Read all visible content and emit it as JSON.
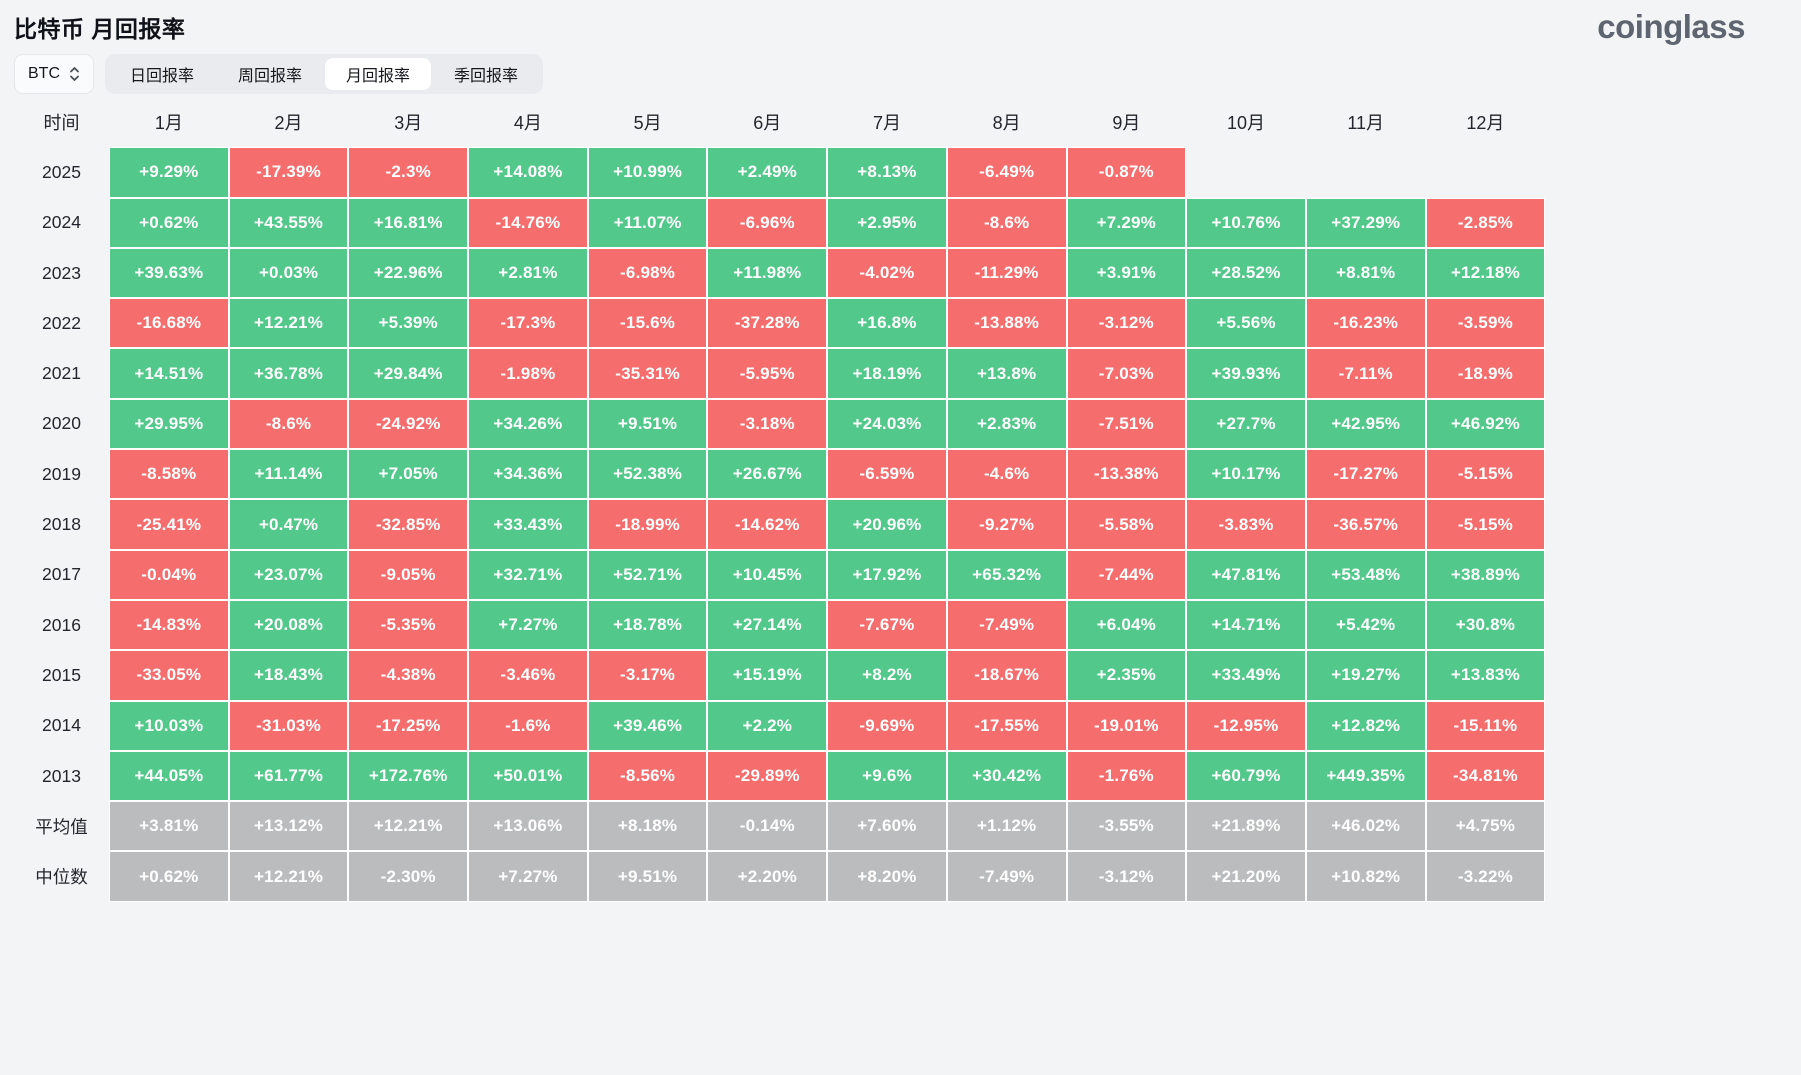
{
  "header": {
    "title": "比特币 月回报率",
    "logo": "coinglass"
  },
  "controls": {
    "coin_selector": {
      "value": "BTC",
      "icon": "updown-chevrons-icon"
    },
    "tabs": [
      {
        "label": "日回报率",
        "active": false
      },
      {
        "label": "周回报率",
        "active": false
      },
      {
        "label": "月回报率",
        "active": true
      },
      {
        "label": "季回报率",
        "active": false
      }
    ]
  },
  "colors": {
    "positive": "#52c98a",
    "negative": "#f66d6d",
    "summary": "#bbbcbe",
    "page_background": "#f3f4f6"
  },
  "chart_data": {
    "type": "heatmap",
    "title": "比特币 月回报率",
    "corner_label": "时间",
    "columns": [
      "1月",
      "2月",
      "3月",
      "4月",
      "5月",
      "6月",
      "7月",
      "8月",
      "9月",
      "10月",
      "11月",
      "12月"
    ],
    "rows": [
      {
        "label": "2025",
        "type": "year",
        "cells": [
          "+9.29%",
          "-17.39%",
          "-2.3%",
          "+14.08%",
          "+10.99%",
          "+2.49%",
          "+8.13%",
          "-6.49%",
          "-0.87%",
          null,
          null,
          null
        ]
      },
      {
        "label": "2024",
        "type": "year",
        "cells": [
          "+0.62%",
          "+43.55%",
          "+16.81%",
          "-14.76%",
          "+11.07%",
          "-6.96%",
          "+2.95%",
          "-8.6%",
          "+7.29%",
          "+10.76%",
          "+37.29%",
          "-2.85%"
        ]
      },
      {
        "label": "2023",
        "type": "year",
        "cells": [
          "+39.63%",
          "+0.03%",
          "+22.96%",
          "+2.81%",
          "-6.98%",
          "+11.98%",
          "-4.02%",
          "-11.29%",
          "+3.91%",
          "+28.52%",
          "+8.81%",
          "+12.18%"
        ]
      },
      {
        "label": "2022",
        "type": "year",
        "cells": [
          "-16.68%",
          "+12.21%",
          "+5.39%",
          "-17.3%",
          "-15.6%",
          "-37.28%",
          "+16.8%",
          "-13.88%",
          "-3.12%",
          "+5.56%",
          "-16.23%",
          "-3.59%"
        ]
      },
      {
        "label": "2021",
        "type": "year",
        "cells": [
          "+14.51%",
          "+36.78%",
          "+29.84%",
          "-1.98%",
          "-35.31%",
          "-5.95%",
          "+18.19%",
          "+13.8%",
          "-7.03%",
          "+39.93%",
          "-7.11%",
          "-18.9%"
        ]
      },
      {
        "label": "2020",
        "type": "year",
        "cells": [
          "+29.95%",
          "-8.6%",
          "-24.92%",
          "+34.26%",
          "+9.51%",
          "-3.18%",
          "+24.03%",
          "+2.83%",
          "-7.51%",
          "+27.7%",
          "+42.95%",
          "+46.92%"
        ]
      },
      {
        "label": "2019",
        "type": "year",
        "cells": [
          "-8.58%",
          "+11.14%",
          "+7.05%",
          "+34.36%",
          "+52.38%",
          "+26.67%",
          "-6.59%",
          "-4.6%",
          "-13.38%",
          "+10.17%",
          "-17.27%",
          "-5.15%"
        ]
      },
      {
        "label": "2018",
        "type": "year",
        "cells": [
          "-25.41%",
          "+0.47%",
          "-32.85%",
          "+33.43%",
          "-18.99%",
          "-14.62%",
          "+20.96%",
          "-9.27%",
          "-5.58%",
          "-3.83%",
          "-36.57%",
          "-5.15%"
        ]
      },
      {
        "label": "2017",
        "type": "year",
        "cells": [
          "-0.04%",
          "+23.07%",
          "-9.05%",
          "+32.71%",
          "+52.71%",
          "+10.45%",
          "+17.92%",
          "+65.32%",
          "-7.44%",
          "+47.81%",
          "+53.48%",
          "+38.89%"
        ]
      },
      {
        "label": "2016",
        "type": "year",
        "cells": [
          "-14.83%",
          "+20.08%",
          "-5.35%",
          "+7.27%",
          "+18.78%",
          "+27.14%",
          "-7.67%",
          "-7.49%",
          "+6.04%",
          "+14.71%",
          "+5.42%",
          "+30.8%"
        ]
      },
      {
        "label": "2015",
        "type": "year",
        "cells": [
          "-33.05%",
          "+18.43%",
          "-4.38%",
          "-3.46%",
          "-3.17%",
          "+15.19%",
          "+8.2%",
          "-18.67%",
          "+2.35%",
          "+33.49%",
          "+19.27%",
          "+13.83%"
        ]
      },
      {
        "label": "2014",
        "type": "year",
        "cells": [
          "+10.03%",
          "-31.03%",
          "-17.25%",
          "-1.6%",
          "+39.46%",
          "+2.2%",
          "-9.69%",
          "-17.55%",
          "-19.01%",
          "-12.95%",
          "+12.82%",
          "-15.11%"
        ]
      },
      {
        "label": "2013",
        "type": "year",
        "cells": [
          "+44.05%",
          "+61.77%",
          "+172.76%",
          "+50.01%",
          "-8.56%",
          "-29.89%",
          "+9.6%",
          "+30.42%",
          "-1.76%",
          "+60.79%",
          "+449.35%",
          "-34.81%"
        ]
      },
      {
        "label": "平均值",
        "type": "summary",
        "cells": [
          "+3.81%",
          "+13.12%",
          "+12.21%",
          "+13.06%",
          "+8.18%",
          "-0.14%",
          "+7.60%",
          "+1.12%",
          "-3.55%",
          "+21.89%",
          "+46.02%",
          "+4.75%"
        ]
      },
      {
        "label": "中位数",
        "type": "summary",
        "cells": [
          "+0.62%",
          "+12.21%",
          "-2.30%",
          "+7.27%",
          "+9.51%",
          "+2.20%",
          "+8.20%",
          "-7.49%",
          "-3.12%",
          "+21.20%",
          "+10.82%",
          "-3.22%"
        ]
      }
    ]
  }
}
